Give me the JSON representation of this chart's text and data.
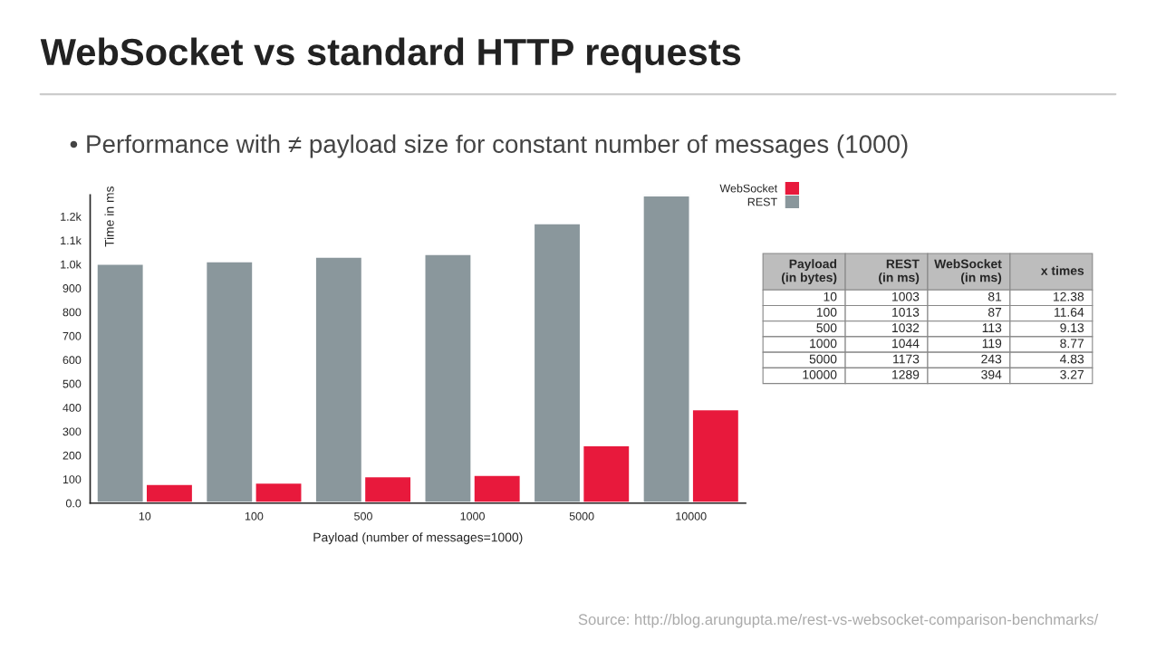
{
  "chart_data": [
    {
      "type": "bar",
      "title": "WebSocket vs standard HTTP requests",
      "subtitle": "• Performance with ≠ payload size for constant number of messages (1000)",
      "xlabel": "Payload (number of messages=1000)",
      "ylabel": "Time in ms",
      "categories": [
        "10",
        "100",
        "500",
        "1000",
        "5000",
        "10000"
      ],
      "series": [
        {
          "name": "REST",
          "color": "#8a979c",
          "values": [
            1003,
            1013,
            1032,
            1044,
            1173,
            1289
          ]
        },
        {
          "name": "WebSocket",
          "color": "#e8193c",
          "values": [
            81,
            87,
            113,
            119,
            243,
            394
          ]
        }
      ],
      "ylim": [
        0,
        1290
      ],
      "yticks": [
        {
          "value": 0,
          "label": "0.0"
        },
        100,
        200,
        300,
        400,
        500,
        600,
        700,
        800,
        900,
        {
          "value": 1000,
          "label": "1.0k"
        },
        {
          "value": 1100,
          "label": "1.1k"
        },
        {
          "value": 1200,
          "label": "1.2k"
        }
      ],
      "legend": "top right",
      "annotations": [
        "Source: http://blog.arungupta.me/rest-vs-websocket-comparison-benchmarks/"
      ]
    },
    {
      "type": "other",
      "categories": [
        "Payload\n(in bytes)",
        "REST\n(in ms)",
        "WebSocket\n(in ms)",
        "x times"
      ],
      "annotations": [
        "10",
        "1003",
        "81",
        "12.38",
        "100",
        "1013",
        "87",
        "11.64",
        "500",
        "1032",
        "113",
        "9.13",
        "1000",
        "1044",
        "119",
        "8.77",
        "5000",
        "1173",
        "243",
        "4.83",
        "10000",
        "1289",
        "394",
        "3.27"
      ]
    }
  ]
}
